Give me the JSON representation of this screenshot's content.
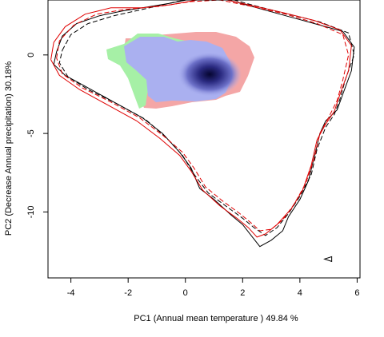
{
  "chart_data": {
    "type": "scatter",
    "xlabel": "PC1 (Annual mean temperature ) 49.84 %",
    "ylabel": "PC2 (Decrease Annual precipitation) 30.18%",
    "xlim": [
      -4.8,
      6.1
    ],
    "ylim": [
      -14.2,
      3.5
    ],
    "x_ticks": [
      -4,
      -2,
      0,
      2,
      4,
      6
    ],
    "y_ticks": [
      0,
      -5,
      -10
    ],
    "grid": false,
    "colors": {
      "overlap_blue": "#aab0f0",
      "pink_niche": "#f4a6a6",
      "green_niche": "#a6f0a6",
      "dense_core": "#0a0a3a",
      "black_contour": "#000000",
      "red_contour": "#e00000"
    },
    "series": [
      {
        "style": "solid",
        "color": "#000000",
        "points": [
          [
            -4.5,
            0.2
          ],
          [
            -4.3,
            1.2
          ],
          [
            -3.8,
            2.0
          ],
          [
            -3.0,
            2.5
          ],
          [
            -2.2,
            2.8
          ],
          [
            -1.5,
            3.0
          ],
          [
            -0.5,
            3.3
          ],
          [
            0.3,
            3.6
          ],
          [
            1.0,
            3.6
          ],
          [
            1.5,
            3.5
          ],
          [
            2.5,
            3.0
          ],
          [
            3.5,
            2.5
          ],
          [
            4.5,
            2.0
          ],
          [
            5.5,
            1.5
          ],
          [
            5.9,
            0.5
          ],
          [
            5.8,
            -1.0
          ],
          [
            5.5,
            -2.5
          ],
          [
            5.3,
            -3.5
          ],
          [
            4.9,
            -4.2
          ],
          [
            4.7,
            -5.0
          ],
          [
            4.5,
            -6.5
          ],
          [
            4.3,
            -8.0
          ],
          [
            4.0,
            -9.2
          ],
          [
            3.6,
            -10.3
          ],
          [
            3.4,
            -11.2
          ],
          [
            3.0,
            -11.8
          ],
          [
            2.6,
            -12.2
          ],
          [
            2.3,
            -11.5
          ],
          [
            2.0,
            -10.8
          ],
          [
            1.6,
            -10.2
          ],
          [
            1.0,
            -9.2
          ],
          [
            0.5,
            -8.5
          ],
          [
            0.2,
            -7.2
          ],
          [
            -0.2,
            -6.2
          ],
          [
            -0.8,
            -5.0
          ],
          [
            -1.5,
            -4.0
          ],
          [
            -2.5,
            -3.0
          ],
          [
            -3.5,
            -2.0
          ],
          [
            -4.2,
            -1.3
          ],
          [
            -4.6,
            -0.6
          ],
          [
            -4.5,
            0.2
          ]
        ]
      },
      {
        "style": "dashed",
        "color": "#000000",
        "points": [
          [
            -4.3,
            0.3
          ],
          [
            -4.0,
            1.3
          ],
          [
            -3.4,
            2.0
          ],
          [
            -2.5,
            2.5
          ],
          [
            -1.5,
            2.9
          ],
          [
            -0.3,
            3.4
          ],
          [
            0.6,
            3.7
          ],
          [
            1.5,
            3.6
          ],
          [
            2.5,
            3.1
          ],
          [
            3.6,
            2.6
          ],
          [
            4.7,
            2.1
          ],
          [
            5.7,
            1.4
          ],
          [
            5.9,
            0.0
          ],
          [
            5.6,
            -1.5
          ],
          [
            5.4,
            -2.8
          ],
          [
            5.2,
            -3.8
          ],
          [
            4.9,
            -4.6
          ],
          [
            4.6,
            -6.0
          ],
          [
            4.4,
            -7.6
          ],
          [
            4.0,
            -9.0
          ],
          [
            3.6,
            -10.1
          ],
          [
            3.2,
            -11.0
          ],
          [
            2.8,
            -11.5
          ],
          [
            2.4,
            -11.0
          ],
          [
            2.0,
            -10.4
          ],
          [
            1.4,
            -9.6
          ],
          [
            0.8,
            -8.8
          ],
          [
            0.3,
            -7.6
          ],
          [
            -0.1,
            -6.4
          ],
          [
            -0.7,
            -5.2
          ],
          [
            -1.4,
            -4.1
          ],
          [
            -2.4,
            -3.1
          ],
          [
            -3.4,
            -2.2
          ],
          [
            -4.1,
            -1.4
          ],
          [
            -4.4,
            -0.5
          ],
          [
            -4.3,
            0.3
          ]
        ]
      },
      {
        "style": "solid",
        "color": "#e00000",
        "points": [
          [
            -4.7,
            -0.3
          ],
          [
            -4.6,
            0.8
          ],
          [
            -4.2,
            1.8
          ],
          [
            -3.5,
            2.6
          ],
          [
            -2.6,
            3.0
          ],
          [
            -1.5,
            3.0
          ],
          [
            -0.5,
            3.2
          ],
          [
            0.4,
            3.5
          ],
          [
            1.2,
            3.6
          ],
          [
            2.2,
            3.2
          ],
          [
            3.4,
            2.7
          ],
          [
            4.5,
            2.2
          ],
          [
            5.4,
            1.6
          ],
          [
            5.8,
            0.6
          ],
          [
            5.7,
            -1.0
          ],
          [
            5.4,
            -2.5
          ],
          [
            5.2,
            -3.6
          ],
          [
            4.9,
            -4.4
          ],
          [
            4.6,
            -5.4
          ],
          [
            4.4,
            -7.0
          ],
          [
            4.1,
            -8.6
          ],
          [
            3.7,
            -9.8
          ],
          [
            3.2,
            -10.8
          ],
          [
            2.8,
            -11.4
          ],
          [
            2.5,
            -11.6
          ],
          [
            2.2,
            -11.0
          ],
          [
            1.8,
            -10.4
          ],
          [
            1.2,
            -9.6
          ],
          [
            0.6,
            -8.6
          ],
          [
            0.2,
            -7.4
          ],
          [
            -0.2,
            -6.4
          ],
          [
            -0.9,
            -5.3
          ],
          [
            -1.7,
            -4.2
          ],
          [
            -2.7,
            -3.2
          ],
          [
            -3.7,
            -2.2
          ],
          [
            -4.4,
            -1.3
          ],
          [
            -4.7,
            -0.3
          ]
        ]
      },
      {
        "style": "dashed",
        "color": "#e00000",
        "points": [
          [
            -4.5,
            -0.2
          ],
          [
            -4.4,
            0.9
          ],
          [
            -3.9,
            1.9
          ],
          [
            -3.1,
            2.6
          ],
          [
            -2.1,
            2.9
          ],
          [
            -0.9,
            3.1
          ],
          [
            0.2,
            3.4
          ],
          [
            1.2,
            3.5
          ],
          [
            2.3,
            3.1
          ],
          [
            3.5,
            2.6
          ],
          [
            4.6,
            2.0
          ],
          [
            5.5,
            1.3
          ],
          [
            5.7,
            0.0
          ],
          [
            5.5,
            -1.6
          ],
          [
            5.3,
            -2.9
          ],
          [
            5.0,
            -4.0
          ],
          [
            4.7,
            -5.0
          ],
          [
            4.5,
            -6.6
          ],
          [
            4.2,
            -8.2
          ],
          [
            3.8,
            -9.5
          ],
          [
            3.4,
            -10.5
          ],
          [
            3.0,
            -11.1
          ],
          [
            2.6,
            -11.2
          ],
          [
            2.3,
            -10.7
          ],
          [
            1.9,
            -10.1
          ],
          [
            1.3,
            -9.3
          ],
          [
            0.7,
            -8.4
          ],
          [
            0.3,
            -7.2
          ],
          [
            -0.1,
            -6.2
          ],
          [
            -0.8,
            -5.1
          ],
          [
            -1.6,
            -4.0
          ],
          [
            -2.6,
            -3.0
          ],
          [
            -3.6,
            -2.1
          ],
          [
            -4.3,
            -1.2
          ],
          [
            -4.5,
            -0.2
          ]
        ]
      }
    ],
    "points": [
      {
        "x": 5.0,
        "y": -13.0,
        "symbol": "triangle"
      }
    ]
  }
}
